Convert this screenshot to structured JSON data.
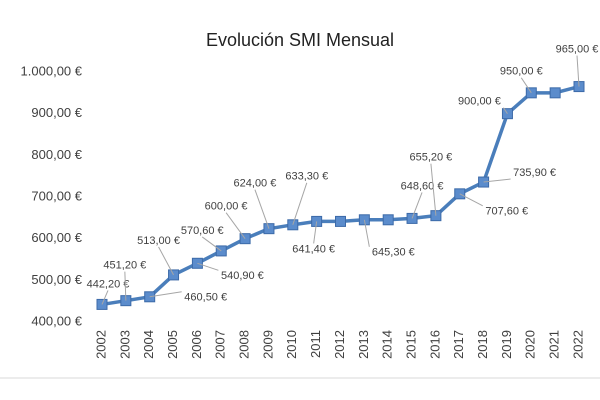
{
  "chart_data": {
    "type": "line",
    "title": "Evolución SMI Mensual",
    "categories": [
      "2002",
      "2003",
      "2004",
      "2005",
      "2006",
      "2007",
      "2008",
      "2009",
      "2010",
      "2011",
      "2012",
      "2013",
      "2014",
      "2015",
      "2016",
      "2017",
      "2018",
      "2019",
      "2020",
      "2021",
      "2022"
    ],
    "values": [
      442.2,
      451.2,
      460.5,
      513,
      540.9,
      570.6,
      600,
      624,
      633.3,
      641.4,
      641.4,
      645.3,
      645.3,
      648.6,
      655.2,
      707.6,
      735.9,
      900,
      950,
      950,
      965
    ],
    "value_labels": [
      "442,20 €",
      "451,20 €",
      "460,50 €",
      "513,00 €",
      "540,90 €",
      "570,60 €",
      "600,00 €",
      "624,00 €",
      "633,30 €",
      "641,40 €",
      null,
      "645,30 €",
      null,
      "648,60 €",
      "655,20 €",
      "707,60 €",
      "735,90 €",
      "900,00 €",
      "950,00 €",
      null,
      "965,00 €"
    ],
    "color": "#4a7ebb",
    "ylim": [
      400,
      1000
    ],
    "yticks": [
      {
        "value": 400,
        "label": "400,00 €"
      },
      {
        "value": 500,
        "label": "500,00 €"
      },
      {
        "value": 600,
        "label": "600,00 €"
      },
      {
        "value": 700,
        "label": "700,00 €"
      },
      {
        "value": 800,
        "label": "800,00 €"
      },
      {
        "value": 900,
        "label": "900,00 €"
      },
      {
        "value": 1000,
        "label": "1.000,00 €"
      }
    ],
    "grid": false
  }
}
